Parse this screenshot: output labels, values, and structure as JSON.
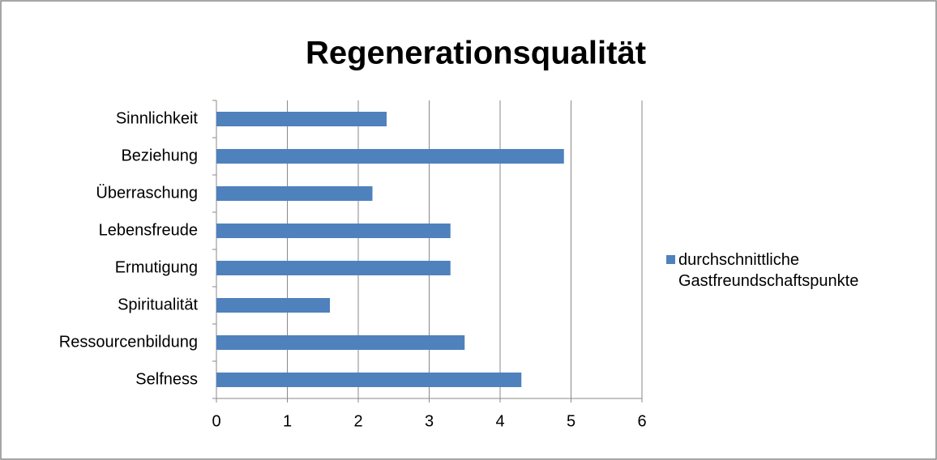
{
  "chart_data": {
    "type": "bar",
    "orientation": "horizontal",
    "title": "Regenerationsqualität",
    "categories": [
      "Sinnlichkeit",
      "Beziehung",
      "Überraschung",
      "Lebensfreude",
      "Ermutigung",
      "Spiritualität",
      "Ressourcenbildung",
      "Selfness"
    ],
    "series": [
      {
        "name": "durchschnittliche Gastfreundschaftspunkte",
        "color": "#4f81bd",
        "values": [
          2.4,
          4.9,
          2.2,
          3.3,
          3.3,
          1.6,
          3.5,
          4.3
        ]
      }
    ],
    "xlim": [
      0,
      6
    ],
    "xticks": [
      0,
      1,
      2,
      3,
      4,
      5,
      6
    ],
    "grid": true,
    "legend": "right"
  }
}
